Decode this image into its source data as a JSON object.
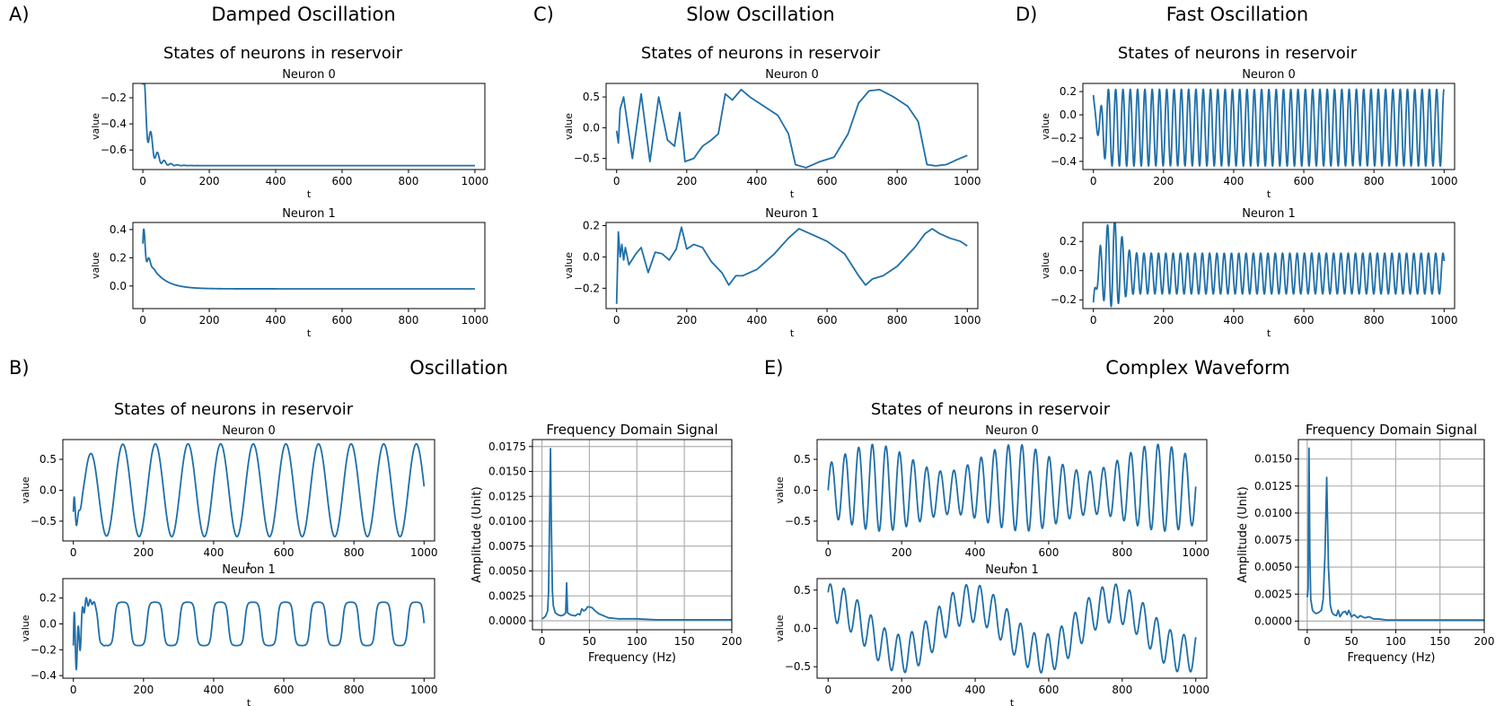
{
  "figure": {
    "panels": [
      {
        "letter": "A)",
        "title": "Damped Oscillation",
        "subtitle": "States of neurons in reservoir"
      },
      {
        "letter": "C)",
        "title": "Slow Oscillation",
        "subtitle": "States of neurons in reservoir"
      },
      {
        "letter": "D)",
        "title": "Fast Oscillation",
        "subtitle": "States of neurons in reservoir"
      },
      {
        "letter": "B)",
        "title": "Oscillation",
        "subtitle": "States of neurons in reservoir"
      },
      {
        "letter": "E)",
        "title": "Complex Waveform",
        "subtitle": "States of neurons in reservoir"
      }
    ]
  },
  "colors": {
    "line": "#1f6fa8",
    "grid": "#b0b0b0",
    "axis": "#000000"
  },
  "chart_data": [
    {
      "type": "line",
      "panel": "A)",
      "title": "Neuron 0",
      "xlabel": "t",
      "ylabel": "value",
      "xlim": [
        -30,
        1030
      ],
      "ylim": [
        -0.75,
        -0.09
      ],
      "xticks": [
        0,
        200,
        400,
        600,
        800,
        1000
      ],
      "yticks": [
        -0.2,
        -0.4,
        -0.6
      ],
      "ytick_labels": [
        "−0.2",
        "−0.4",
        "−0.6"
      ],
      "signal": {
        "kind": "damped",
        "start": -0.1,
        "end": -0.72,
        "amp": 0.2,
        "period": 20,
        "tau": 20,
        "decay": 25
      }
    },
    {
      "type": "line",
      "panel": "A)",
      "title": "Neuron 1",
      "xlabel": "t",
      "ylabel": "value",
      "xlim": [
        -30,
        1030
      ],
      "ylim": [
        -0.16,
        0.45
      ],
      "xticks": [
        0,
        200,
        400,
        600,
        800,
        1000
      ],
      "yticks": [
        0.4,
        0.2,
        0.0
      ],
      "ytick_labels": [
        "0.4",
        "0.2",
        "0.0"
      ],
      "signal": {
        "kind": "damped",
        "start": 0.3,
        "end": -0.02,
        "amp": 0.2,
        "period": 16,
        "tau": 40,
        "decay": 8
      }
    },
    {
      "type": "line",
      "panel": "C)",
      "title": "Neuron 0",
      "xlabel": "t",
      "ylabel": "value",
      "xlim": [
        -30,
        1030
      ],
      "ylim": [
        -0.68,
        0.72
      ],
      "xticks": [
        0,
        200,
        400,
        600,
        800,
        1000
      ],
      "yticks": [
        0.5,
        0.0,
        -0.5
      ],
      "ytick_labels": [
        "0.5",
        "0.0",
        "−0.5"
      ],
      "points": [
        [
          0,
          -0.05
        ],
        [
          5,
          -0.25
        ],
        [
          10,
          0.3
        ],
        [
          20,
          0.5
        ],
        [
          30,
          0.1
        ],
        [
          45,
          -0.5
        ],
        [
          70,
          0.55
        ],
        [
          95,
          -0.55
        ],
        [
          120,
          0.5
        ],
        [
          145,
          -0.2
        ],
        [
          165,
          -0.3
        ],
        [
          180,
          0.25
        ],
        [
          195,
          -0.55
        ],
        [
          220,
          -0.5
        ],
        [
          245,
          -0.3
        ],
        [
          270,
          -0.2
        ],
        [
          290,
          -0.1
        ],
        [
          310,
          0.55
        ],
        [
          330,
          0.45
        ],
        [
          355,
          0.62
        ],
        [
          380,
          0.5
        ],
        [
          420,
          0.35
        ],
        [
          460,
          0.2
        ],
        [
          490,
          -0.1
        ],
        [
          510,
          -0.6
        ],
        [
          540,
          -0.65
        ],
        [
          580,
          -0.55
        ],
        [
          620,
          -0.48
        ],
        [
          660,
          -0.1
        ],
        [
          690,
          0.4
        ],
        [
          720,
          0.6
        ],
        [
          750,
          0.62
        ],
        [
          790,
          0.5
        ],
        [
          830,
          0.35
        ],
        [
          860,
          0.1
        ],
        [
          885,
          -0.6
        ],
        [
          910,
          -0.62
        ],
        [
          940,
          -0.6
        ],
        [
          970,
          -0.52
        ],
        [
          1000,
          -0.45
        ]
      ]
    },
    {
      "type": "line",
      "panel": "C)",
      "title": "Neuron 1",
      "xlabel": "t",
      "ylabel": "value",
      "xlim": [
        -30,
        1030
      ],
      "ylim": [
        -0.33,
        0.22
      ],
      "xticks": [
        0,
        200,
        400,
        600,
        800,
        1000
      ],
      "yticks": [
        0.2,
        0.0,
        -0.2
      ],
      "ytick_labels": [
        "0.2",
        "0.0",
        "−0.2"
      ],
      "points": [
        [
          0,
          -0.3
        ],
        [
          5,
          0.16
        ],
        [
          10,
          0.0
        ],
        [
          15,
          0.08
        ],
        [
          20,
          -0.02
        ],
        [
          25,
          0.06
        ],
        [
          35,
          -0.05
        ],
        [
          55,
          0.02
        ],
        [
          70,
          0.06
        ],
        [
          90,
          -0.1
        ],
        [
          110,
          0.03
        ],
        [
          130,
          0.02
        ],
        [
          150,
          -0.02
        ],
        [
          170,
          0.05
        ],
        [
          185,
          0.19
        ],
        [
          200,
          0.05
        ],
        [
          220,
          0.08
        ],
        [
          245,
          0.06
        ],
        [
          270,
          -0.03
        ],
        [
          300,
          -0.1
        ],
        [
          320,
          -0.18
        ],
        [
          340,
          -0.12
        ],
        [
          360,
          -0.12
        ],
        [
          400,
          -0.08
        ],
        [
          450,
          0.02
        ],
        [
          490,
          0.12
        ],
        [
          520,
          0.18
        ],
        [
          550,
          0.15
        ],
        [
          600,
          0.1
        ],
        [
          650,
          0.02
        ],
        [
          690,
          -0.12
        ],
        [
          710,
          -0.18
        ],
        [
          730,
          -0.14
        ],
        [
          760,
          -0.12
        ],
        [
          800,
          -0.06
        ],
        [
          850,
          0.06
        ],
        [
          880,
          0.15
        ],
        [
          900,
          0.18
        ],
        [
          920,
          0.15
        ],
        [
          950,
          0.12
        ],
        [
          980,
          0.1
        ],
        [
          1000,
          0.07
        ]
      ]
    },
    {
      "type": "line",
      "panel": "D)",
      "title": "Neuron 0",
      "xlabel": "t",
      "ylabel": "value",
      "xlim": [
        -30,
        1030
      ],
      "ylim": [
        -0.47,
        0.27
      ],
      "xticks": [
        0,
        200,
        400,
        600,
        800,
        1000
      ],
      "yticks": [
        0.2,
        0.0,
        -0.2,
        -0.4
      ],
      "ytick_labels": [
        "0.2",
        "0.0",
        "−0.2",
        "−0.4"
      ],
      "signal": {
        "kind": "fast",
        "start": 0.17,
        "center": -0.11,
        "amp": 0.33,
        "period": 20.8
      }
    },
    {
      "type": "line",
      "panel": "D)",
      "title": "Neuron 1",
      "xlabel": "t",
      "ylabel": "value",
      "xlim": [
        -30,
        1030
      ],
      "ylim": [
        -0.26,
        0.33
      ],
      "xticks": [
        0,
        200,
        400,
        600,
        800,
        1000
      ],
      "yticks": [
        0.2,
        0.0,
        -0.2
      ],
      "ytick_labels": [
        "0.2",
        "0.0",
        "−0.2"
      ],
      "signal": {
        "kind": "fastb",
        "start": -0.22,
        "center": -0.02,
        "amp": 0.14,
        "period": 20.8
      }
    },
    {
      "type": "line",
      "panel": "B)",
      "title": "Neuron 0",
      "xlabel": "t",
      "ylabel": "value",
      "xlim": [
        -30,
        1030
      ],
      "ylim": [
        -0.82,
        0.82
      ],
      "xticks": [
        0,
        200,
        400,
        600,
        800,
        1000
      ],
      "yticks": [
        0.5,
        0.0,
        -0.5
      ],
      "ytick_labels": [
        "0.5",
        "0.0",
        "−0.5"
      ],
      "signal": {
        "kind": "osc",
        "amp": 0.75,
        "period": 93
      }
    },
    {
      "type": "line",
      "panel": "B)",
      "title": "Neuron 1",
      "xlabel": "t",
      "ylabel": "value",
      "xlim": [
        -30,
        1030
      ],
      "ylim": [
        -0.42,
        0.35
      ],
      "xticks": [
        0,
        200,
        400,
        600,
        800,
        1000
      ],
      "yticks": [
        0.2,
        0.0,
        -0.2,
        -0.4
      ],
      "ytick_labels": [
        "0.2",
        "0.0",
        "−0.2",
        "−0.4"
      ],
      "signal": {
        "kind": "oscb",
        "period": 93
      }
    },
    {
      "type": "line",
      "panel": "B)",
      "title": "Frequency Domain Signal",
      "xlabel": "Frequency (Hz)",
      "ylabel": "Amplitude (Unit)",
      "grid": true,
      "xlim": [
        -10,
        200
      ],
      "ylim": [
        -0.0009,
        0.0182
      ],
      "xticks": [
        0,
        50,
        100,
        150,
        200
      ],
      "yticks": [
        0.0,
        0.0025,
        0.005,
        0.0075,
        0.01,
        0.0125,
        0.015,
        0.0175
      ],
      "ytick_labels": [
        "0.0000",
        "0.0025",
        "0.0050",
        "0.0075",
        "0.0100",
        "0.0125",
        "0.0150",
        "0.0175"
      ],
      "points": [
        [
          0,
          0.0002
        ],
        [
          2,
          0.0003
        ],
        [
          4,
          0.0005
        ],
        [
          6,
          0.001
        ],
        [
          7,
          0.003
        ],
        [
          8,
          0.01
        ],
        [
          9,
          0.0173
        ],
        [
          10,
          0.009
        ],
        [
          11,
          0.003
        ],
        [
          12,
          0.0015
        ],
        [
          14,
          0.0008
        ],
        [
          17,
          0.0006
        ],
        [
          20,
          0.0005
        ],
        [
          23,
          0.0006
        ],
        [
          25,
          0.0008
        ],
        [
          26,
          0.0038
        ],
        [
          27,
          0.0008
        ],
        [
          30,
          0.0006
        ],
        [
          35,
          0.0005
        ],
        [
          38,
          0.0007
        ],
        [
          40,
          0.0006
        ],
        [
          42,
          0.0012
        ],
        [
          44,
          0.001
        ],
        [
          46,
          0.0011
        ],
        [
          48,
          0.0014
        ],
        [
          50,
          0.0014
        ],
        [
          53,
          0.0013
        ],
        [
          56,
          0.001
        ],
        [
          60,
          0.0007
        ],
        [
          65,
          0.0005
        ],
        [
          70,
          0.0003
        ],
        [
          80,
          0.0002
        ],
        [
          90,
          0.0002
        ],
        [
          100,
          0.0002
        ],
        [
          120,
          0.0001
        ],
        [
          150,
          0.0001
        ],
        [
          200,
          0.0001
        ]
      ]
    },
    {
      "type": "line",
      "panel": "E)",
      "title": "Neuron 0",
      "xlabel": "t",
      "ylabel": "value",
      "xlim": [
        -30,
        1030
      ],
      "ylim": [
        -0.82,
        0.82
      ],
      "xticks": [
        0,
        200,
        400,
        600,
        800,
        1000
      ],
      "yticks": [
        0.5,
        0.0,
        -0.5
      ],
      "ytick_labels": [
        "0.5",
        "0.0",
        "−0.5"
      ],
      "signal": {
        "kind": "beat",
        "period": 37,
        "env_period": 385,
        "amp_min": 0.35,
        "amp_max": 0.7,
        "center": 0.0
      }
    },
    {
      "type": "line",
      "panel": "E)",
      "title": "Neuron 1",
      "xlabel": "t",
      "ylabel": "value",
      "xlim": [
        -30,
        1030
      ],
      "ylim": [
        -0.65,
        0.65
      ],
      "xticks": [
        0,
        200,
        400,
        600,
        800,
        1000
      ],
      "yticks": [
        0.5,
        0.0,
        -0.5
      ],
      "ytick_labels": [
        "0.5",
        "0.0",
        "−0.5"
      ],
      "signal": {
        "kind": "beat2",
        "period": 37,
        "env_period": 385
      }
    },
    {
      "type": "line",
      "panel": "E)",
      "title": "Frequency Domain Signal",
      "xlabel": "Frequency (Hz)",
      "ylabel": "Amplitude (Unit)",
      "grid": true,
      "xlim": [
        -10,
        200
      ],
      "ylim": [
        -0.0008,
        0.0168
      ],
      "xticks": [
        0,
        50,
        100,
        150,
        200
      ],
      "yticks": [
        0.0,
        0.0025,
        0.005,
        0.0075,
        0.01,
        0.0125,
        0.015
      ],
      "ytick_labels": [
        "0.0000",
        "0.0025",
        "0.0050",
        "0.0075",
        "0.0100",
        "0.0125",
        "0.0150"
      ],
      "points": [
        [
          0,
          0.0022
        ],
        [
          1,
          0.003
        ],
        [
          2,
          0.016
        ],
        [
          3,
          0.006
        ],
        [
          4,
          0.002
        ],
        [
          6,
          0.001
        ],
        [
          8,
          0.0008
        ],
        [
          10,
          0.0007
        ],
        [
          13,
          0.0008
        ],
        [
          16,
          0.001
        ],
        [
          18,
          0.002
        ],
        [
          20,
          0.006
        ],
        [
          22,
          0.0133
        ],
        [
          24,
          0.005
        ],
        [
          26,
          0.0015
        ],
        [
          28,
          0.0008
        ],
        [
          30,
          0.0006
        ],
        [
          33,
          0.0005
        ],
        [
          35,
          0.001
        ],
        [
          37,
          0.0004
        ],
        [
          40,
          0.0008
        ],
        [
          43,
          0.0009
        ],
        [
          45,
          0.0006
        ],
        [
          47,
          0.001
        ],
        [
          50,
          0.0004
        ],
        [
          53,
          0.0006
        ],
        [
          57,
          0.0003
        ],
        [
          60,
          0.0005
        ],
        [
          65,
          0.0003
        ],
        [
          70,
          0.0004
        ],
        [
          75,
          0.0002
        ],
        [
          80,
          0.0002
        ],
        [
          90,
          0.0001
        ],
        [
          100,
          0.0001
        ],
        [
          150,
          0.0001
        ],
        [
          200,
          0.0001
        ]
      ]
    }
  ]
}
